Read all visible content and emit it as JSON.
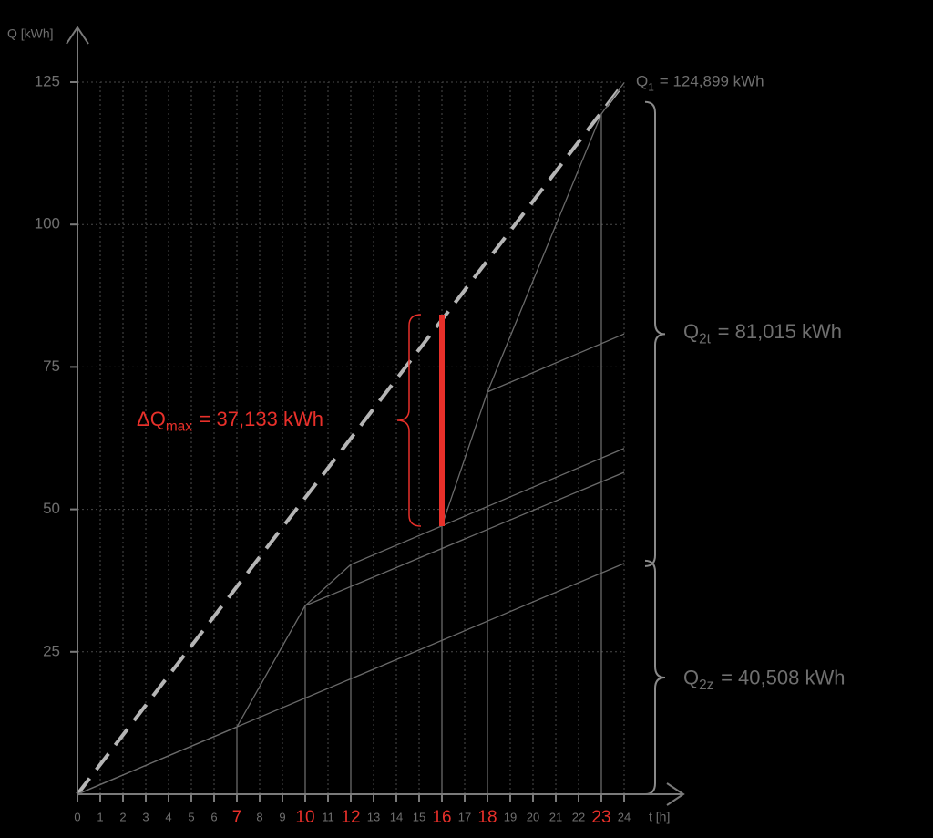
{
  "chart_data": {
    "type": "line",
    "y_label": "Q [kWh]",
    "x_label": "t [h]",
    "xlim": [
      0,
      24
    ],
    "ylim": [
      0,
      125
    ],
    "xticks": [
      0,
      1,
      2,
      3,
      4,
      5,
      6,
      7,
      8,
      9,
      10,
      11,
      12,
      13,
      14,
      15,
      16,
      17,
      18,
      19,
      20,
      21,
      22,
      23,
      24
    ],
    "yticks": [
      25,
      50,
      75,
      100,
      125
    ],
    "grid": true,
    "highlight_x": [
      7,
      10,
      12,
      16,
      18,
      23
    ],
    "highlight_color": "#e8302a",
    "series": [
      {
        "x": [
          0,
          24
        ],
        "values": [
          0,
          124.899
        ],
        "color": "#b5b5b5",
        "dashed": true
      },
      {
        "x": [
          0,
          24
        ],
        "values": [
          0,
          40.508
        ],
        "color": "#6a6a6a"
      },
      {
        "x": [
          0,
          7,
          10,
          24
        ],
        "values": [
          0,
          11.8,
          33.1,
          56.5
        ],
        "color": "#6a6a6a"
      },
      {
        "x": [
          10,
          12,
          24
        ],
        "values": [
          33.1,
          40.3,
          60.7
        ],
        "color": "#6a6a6a"
      },
      {
        "x": [
          16,
          18,
          24
        ],
        "values": [
          47.1,
          70.6,
          80.8
        ],
        "color": "#6a6a6a"
      },
      {
        "x": [
          18,
          23,
          24
        ],
        "values": [
          70.6,
          119.4,
          124.899
        ],
        "color": "#6a6a6a"
      }
    ],
    "annotations": [
      {
        "text": "Q",
        "sub": "1",
        "rest": "= 124,899 kWh",
        "value": 124.899
      },
      {
        "text": "Q",
        "sub": "2t",
        "rest": "= 81,015 kWh",
        "value": 81.015
      },
      {
        "text": "Q",
        "sub": "2z",
        "rest": "= 40,508 kWh",
        "value": 40.508
      }
    ],
    "delta": {
      "text": "ΔQ",
      "sub": "max",
      "rest": "= 37,133 kWh",
      "x": 16,
      "base": 47.05,
      "value": 37.133,
      "color": "#e8302a"
    }
  }
}
